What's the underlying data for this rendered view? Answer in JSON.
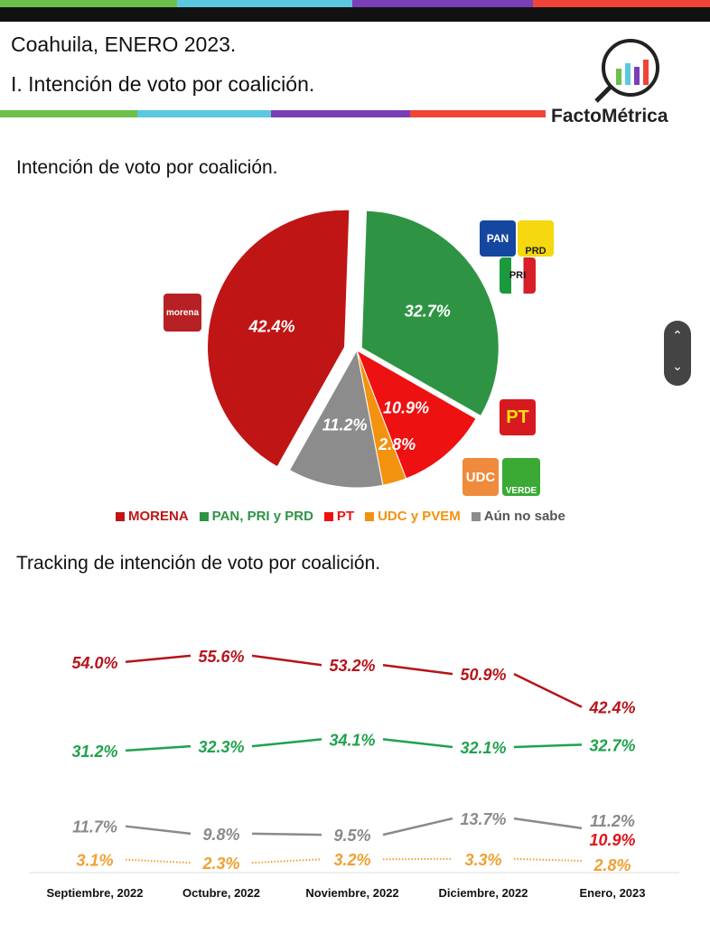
{
  "header": {
    "title": "Coahuila, ENERO 2023.",
    "subtitle": "I. Intención de voto por coalición.",
    "brand": "FactoMétrica"
  },
  "colors": {
    "green": "#6cbf4a",
    "cyan": "#5bc8e0",
    "purple": "#7a3fb7",
    "red": "#f04438"
  },
  "badges": {
    "morena": "morena",
    "pan": "PAN",
    "prd": "PRD",
    "pri": "PRI",
    "pt": "PT",
    "udc": "UDC",
    "verde": "VERDE"
  },
  "chart_data": [
    {
      "type": "pie",
      "title": "Intención de voto por coalición.",
      "slices": [
        {
          "name": "PAN, PRI y PRD",
          "value": 32.7,
          "label": "32.7%",
          "color": "#2e9444"
        },
        {
          "name": "PT",
          "value": 10.9,
          "label": "10.9%",
          "color": "#ee1111"
        },
        {
          "name": "UDC y PVEM",
          "value": 2.8,
          "label": "2.8%",
          "color": "#f3920f"
        },
        {
          "name": "Aún no sabe",
          "value": 11.2,
          "label": "11.2%",
          "color": "#8c8c8c"
        },
        {
          "name": "MORENA",
          "value": 42.4,
          "label": "42.4%",
          "color": "#bf1515"
        }
      ],
      "legend": [
        "MORENA",
        "PAN, PRI y PRD",
        "PT",
        "UDC y PVEM",
        "Aún no sabe"
      ],
      "legend_placement": "bottom"
    },
    {
      "type": "line",
      "title": "Tracking de intención de voto por coalición.",
      "categories": [
        "Septiembre, 2022",
        "Octubre, 2022",
        "Noviembre, 2022",
        "Diciembre, 2022",
        "Enero, 2023"
      ],
      "series": [
        {
          "values": [
            54.0,
            55.6,
            53.2,
            50.9,
            42.4
          ],
          "labels": [
            "54.0%",
            "55.6%",
            "53.2%",
            "50.9%",
            "42.4%"
          ],
          "color": "#b5141b",
          "style": "solid"
        },
        {
          "values": [
            31.2,
            32.3,
            34.1,
            32.1,
            32.7
          ],
          "labels": [
            "31.2%",
            "32.3%",
            "34.1%",
            "32.1%",
            "32.7%"
          ],
          "color": "#1fa24c",
          "style": "solid"
        },
        {
          "values": [
            11.7,
            9.8,
            9.5,
            13.7,
            11.2
          ],
          "labels": [
            "11.7%",
            "9.8%",
            "9.5%",
            "13.7%",
            "11.2%"
          ],
          "color": "#8a8a8a",
          "style": "solid"
        },
        {
          "values": [
            null,
            null,
            null,
            null,
            10.9
          ],
          "labels": [
            "",
            "",
            "",
            "",
            "10.9%"
          ],
          "color": "#e0141b",
          "style": "none"
        },
        {
          "values": [
            3.1,
            2.3,
            3.2,
            3.3,
            2.8
          ],
          "labels": [
            "3.1%",
            "2.3%",
            "3.2%",
            "3.3%",
            "2.8%"
          ],
          "color": "#f0a030",
          "style": "dotted"
        }
      ],
      "grid": false
    }
  ]
}
